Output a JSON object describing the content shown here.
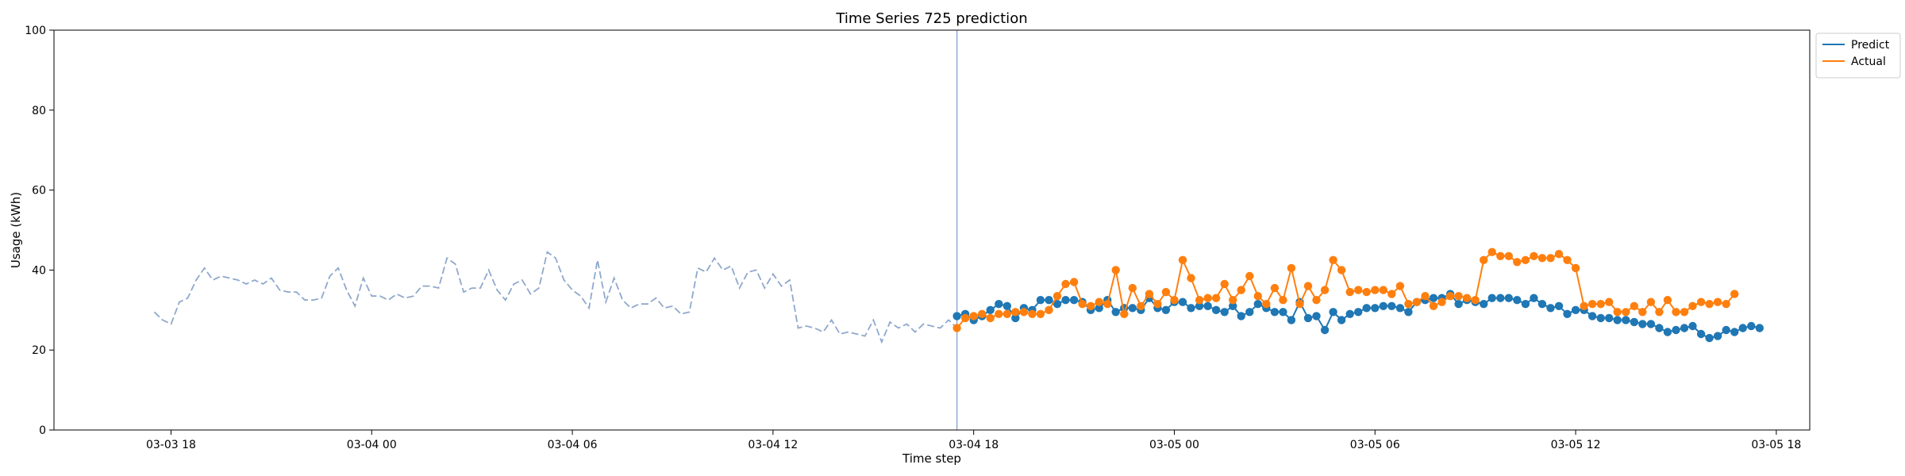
{
  "chart_data": {
    "type": "line",
    "title": "Time Series 725 prediction",
    "xlabel": "Time step",
    "ylabel": "Usage (kWh)",
    "ylim": [
      0,
      100
    ],
    "xlim": [
      "03-03 14:30",
      "03-05 19:00"
    ],
    "yticks": [
      0,
      20,
      40,
      60,
      80,
      100
    ],
    "xticks": [
      {
        "t": "03-03 18:00",
        "label": "03-03 18"
      },
      {
        "t": "03-04 00:00",
        "label": "03-04 00"
      },
      {
        "t": "03-04 06:00",
        "label": "03-04 06"
      },
      {
        "t": "03-04 12:00",
        "label": "03-04 12"
      },
      {
        "t": "03-04 18:00",
        "label": "03-04 18"
      },
      {
        "t": "03-05 00:00",
        "label": "03-05 00"
      },
      {
        "t": "03-05 06:00",
        "label": "03-05 06"
      },
      {
        "t": "03-05 12:00",
        "label": "03-05 12"
      },
      {
        "t": "03-05 18:00",
        "label": "03-05 18"
      }
    ],
    "legend_position": "upper-right-outside",
    "grid": false,
    "forecast_start": "03-04 17:30",
    "history": {
      "start": "03-03 17:30",
      "step_minutes": 15,
      "color": "#8fa8cc",
      "style": "dashed",
      "values": [
        29.5,
        27.5,
        26.5,
        32.0,
        33.0,
        37.5,
        40.5,
        37.5,
        38.5,
        38.0,
        37.5,
        36.5,
        37.5,
        36.5,
        38.0,
        35.0,
        34.5,
        34.5,
        32.5,
        32.5,
        33.0,
        38.5,
        40.5,
        35.0,
        31.0,
        38.0,
        33.5,
        33.5,
        32.5,
        34.0,
        33.0,
        33.5,
        36.0,
        36.0,
        35.5,
        43.0,
        41.5,
        34.5,
        35.5,
        35.5,
        40.0,
        35.0,
        32.5,
        36.5,
        37.5,
        34.0,
        35.5,
        44.5,
        43.0,
        37.5,
        35.0,
        33.5,
        30.5,
        42.5,
        32.0,
        38.0,
        32.5,
        30.5,
        31.5,
        31.5,
        33.0,
        30.5,
        31.0,
        29.0,
        29.5,
        40.5,
        39.5,
        43.0,
        40.0,
        41.0,
        35.5,
        39.5,
        40.0,
        35.5,
        39.0,
        36.0,
        37.5,
        25.5,
        26.0,
        25.5,
        24.5,
        27.5,
        24.0,
        24.5,
        24.0,
        23.5,
        27.5,
        22.0,
        27.0,
        25.5,
        26.5,
        24.5,
        26.5,
        26.0,
        25.5,
        27.5,
        25.5
      ]
    },
    "series": [
      {
        "name": "Predict",
        "color": "#1f77b4",
        "start": "03-04 17:30",
        "step_minutes": 15,
        "values": [
          28.5,
          29.0,
          27.5,
          28.5,
          30.0,
          31.5,
          31.0,
          28.0,
          30.5,
          30.0,
          32.5,
          32.5,
          31.5,
          32.5,
          32.5,
          32.0,
          30.0,
          30.5,
          32.5,
          29.5,
          30.5,
          30.5,
          30.0,
          33.0,
          30.5,
          30.0,
          32.0,
          32.0,
          30.5,
          31.0,
          31.0,
          30.0,
          29.5,
          31.0,
          28.5,
          29.5,
          31.5,
          30.5,
          29.5,
          29.5,
          27.5,
          32.0,
          28.0,
          28.5,
          25.0,
          29.5,
          27.5,
          29.0,
          29.5,
          30.5,
          30.5,
          31.0,
          31.0,
          30.5,
          29.5,
          32.0,
          32.5,
          33.0,
          33.0,
          34.0,
          31.5,
          32.5,
          32.0,
          31.5,
          33.0,
          33.0,
          33.0,
          32.5,
          31.5,
          33.0,
          31.5,
          30.5,
          31.0,
          29.0,
          30.0,
          30.0,
          28.5,
          28.0,
          28.0,
          27.5,
          27.5,
          27.0,
          26.5,
          26.5,
          25.5,
          24.5,
          25.0,
          25.5,
          26.0,
          24.0,
          23.0,
          23.5,
          25.0,
          24.5,
          25.5,
          26.0,
          25.5
        ]
      },
      {
        "name": "Actual",
        "color": "#ff7f0e",
        "start": "03-04 17:30",
        "step_minutes": 15,
        "values": [
          25.5,
          28.0,
          28.5,
          29.0,
          28.0,
          29.0,
          29.0,
          29.5,
          29.5,
          29.0,
          29.0,
          30.0,
          33.5,
          36.5,
          37.0,
          31.5,
          31.0,
          32.0,
          31.5,
          40.0,
          29.0,
          35.5,
          31.0,
          34.0,
          31.5,
          34.5,
          32.5,
          42.5,
          38.0,
          32.5,
          33.0,
          33.0,
          36.5,
          32.5,
          35.0,
          38.5,
          33.5,
          31.5,
          35.5,
          32.5,
          40.5,
          31.5,
          36.0,
          32.5,
          35.0,
          42.5,
          40.0,
          34.5,
          35.0,
          34.5,
          35.0,
          35.0,
          34.0,
          36.0,
          31.5,
          32.0,
          33.5,
          31.0,
          32.0,
          33.5,
          33.5,
          33.0,
          32.5,
          42.5,
          44.5,
          43.5,
          43.5,
          42.0,
          42.5,
          43.5,
          43.0,
          43.0,
          44.0,
          42.5,
          40.5,
          31.0,
          31.5,
          31.5,
          32.0,
          29.5,
          29.5,
          31.0,
          29.5,
          32.0,
          29.5,
          32.5,
          29.5,
          29.5,
          31.0,
          32.0,
          31.5,
          32.0,
          31.5,
          34.0
        ]
      }
    ]
  }
}
